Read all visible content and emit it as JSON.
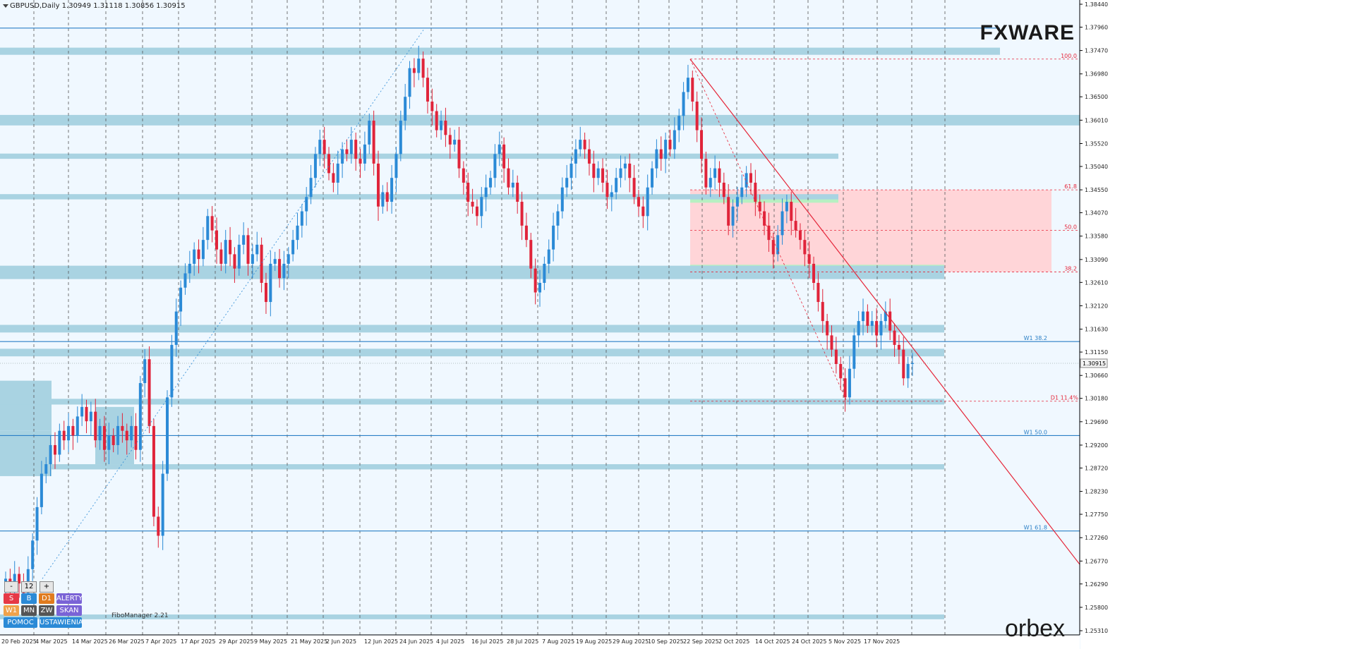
{
  "header": {
    "symbol_info": "GBPUSD,Daily  1.30949 1.31118 1.30856 1.30915"
  },
  "chart_data": {
    "type": "candlestick",
    "symbol": "GBPUSD",
    "timeframe": "Daily",
    "ohlc_current": {
      "open": 1.30949,
      "high": 1.31118,
      "low": 1.30856,
      "close": 1.30915
    },
    "y_range": [
      1.25311,
      1.3844
    ],
    "y_ticks": [
      "1.38440",
      "1.37960",
      "1.37470",
      "1.36980",
      "1.36500",
      "1.36010",
      "1.35520",
      "1.35040",
      "1.34550",
      "1.34070",
      "1.33580",
      "1.33090",
      "1.32610",
      "1.32120",
      "1.31630",
      "1.31150",
      "1.30660",
      "1.30180",
      "1.29690",
      "1.29200",
      "1.28720",
      "1.28230",
      "1.27750",
      "1.27260",
      "1.26770",
      "1.26290",
      "1.25800",
      "1.25310"
    ],
    "current_price_label": "1.30915",
    "x_ticks": [
      "20 Feb 2025",
      "4 Mar 2025",
      "14 Mar 2025",
      "26 Mar 2025",
      "7 Apr 2025",
      "17 Apr 2025",
      "29 Apr 2025",
      "9 May 2025",
      "21 May 2025",
      "2 Jun 2025",
      "12 Jun 2025",
      "24 Jun 2025",
      "4 Jul 2025",
      "16 Jul 2025",
      "28 Jul 2025",
      "7 Aug 2025",
      "19 Aug 2025",
      "29 Aug 2025",
      "10 Sep 2025",
      "22 Sep 2025",
      "2 Oct 2025",
      "14 Oct 2025",
      "24 Oct 2025",
      "5 Nov 2025",
      "17 Nov 2025"
    ],
    "closes": [
      1.264,
      1.262,
      1.265,
      1.263,
      1.261,
      1.266,
      1.272,
      1.279,
      1.286,
      1.288,
      1.292,
      1.29,
      1.295,
      1.293,
      1.296,
      1.294,
      1.298,
      1.3,
      1.297,
      1.299,
      1.293,
      1.296,
      1.291,
      1.294,
      1.292,
      1.296,
      1.295,
      1.293,
      1.296,
      1.291,
      1.305,
      1.31,
      1.296,
      1.277,
      1.273,
      1.286,
      1.302,
      1.313,
      1.32,
      1.325,
      1.328,
      1.33,
      1.333,
      1.331,
      1.335,
      1.34,
      1.337,
      1.333,
      1.33,
      1.335,
      1.332,
      1.329,
      1.334,
      1.336,
      1.33,
      1.332,
      1.334,
      1.326,
      1.322,
      1.33,
      1.331,
      1.327,
      1.33,
      1.332,
      1.335,
      1.338,
      1.341,
      1.344,
      1.348,
      1.353,
      1.356,
      1.353,
      1.349,
      1.347,
      1.351,
      1.354,
      1.353,
      1.356,
      1.352,
      1.351,
      1.355,
      1.36,
      1.351,
      1.342,
      1.345,
      1.343,
      1.348,
      1.353,
      1.36,
      1.365,
      1.371,
      1.37,
      1.373,
      1.369,
      1.364,
      1.362,
      1.358,
      1.36,
      1.357,
      1.355,
      1.356,
      1.35,
      1.347,
      1.343,
      1.342,
      1.34,
      1.344,
      1.346,
      1.348,
      1.353,
      1.355,
      1.35,
      1.346,
      1.347,
      1.343,
      1.338,
      1.335,
      1.329,
      1.324,
      1.326,
      1.33,
      1.333,
      1.338,
      1.341,
      1.346,
      1.348,
      1.351,
      1.354,
      1.356,
      1.354,
      1.351,
      1.348,
      1.35,
      1.347,
      1.344,
      1.345,
      1.348,
      1.35,
      1.351,
      1.348,
      1.344,
      1.342,
      1.34,
      1.346,
      1.35,
      1.354,
      1.352,
      1.356,
      1.354,
      1.358,
      1.361,
      1.366,
      1.369,
      1.364,
      1.358,
      1.352,
      1.346,
      1.348,
      1.35,
      1.347,
      1.344,
      1.338,
      1.342,
      1.344,
      1.346,
      1.349,
      1.347,
      1.343,
      1.341,
      1.338,
      1.335,
      1.332,
      1.336,
      1.341,
      1.343,
      1.339,
      1.337,
      1.335,
      1.332,
      1.33,
      1.326,
      1.322,
      1.318,
      1.315,
      1.312,
      1.309,
      1.306,
      1.302,
      1.308,
      1.315,
      1.318,
      1.32,
      1.317,
      1.318,
      1.315,
      1.318,
      1.32,
      1.316,
      1.313,
      1.312,
      1.306,
      1.309,
      1.3092
    ],
    "levels": {
      "fib_right_labels": [
        "100.0",
        "61.8",
        "50.0",
        "38.2"
      ],
      "weekly_labels": [
        "W1 38.2",
        "W1 50.0",
        "W1 61.8"
      ],
      "daily_label": "D1 11.4%"
    }
  },
  "colors": {
    "background": "#f0f8ff",
    "bull": "#2b8ad6",
    "bear": "#e0243a",
    "zone": "#a9d3e2",
    "fib_zone": "#ffd5d8",
    "green_band": "#b7f0c2",
    "level_line": "#2a7fc6",
    "trend_line": "#e5263a"
  },
  "toolbar": {
    "minus": "-",
    "count": "12",
    "plus": "+",
    "row1": [
      "S",
      "B",
      "D1",
      "ALERTY"
    ],
    "row2": [
      "W1",
      "MN",
      "ZW",
      "SKAN"
    ],
    "row3": [
      "POMOC",
      "USTAWIENIA"
    ]
  },
  "brand": {
    "top_right": "FXWARE",
    "bottom_right": "orbex",
    "fibo_manager": "FiboManager 2.21"
  }
}
